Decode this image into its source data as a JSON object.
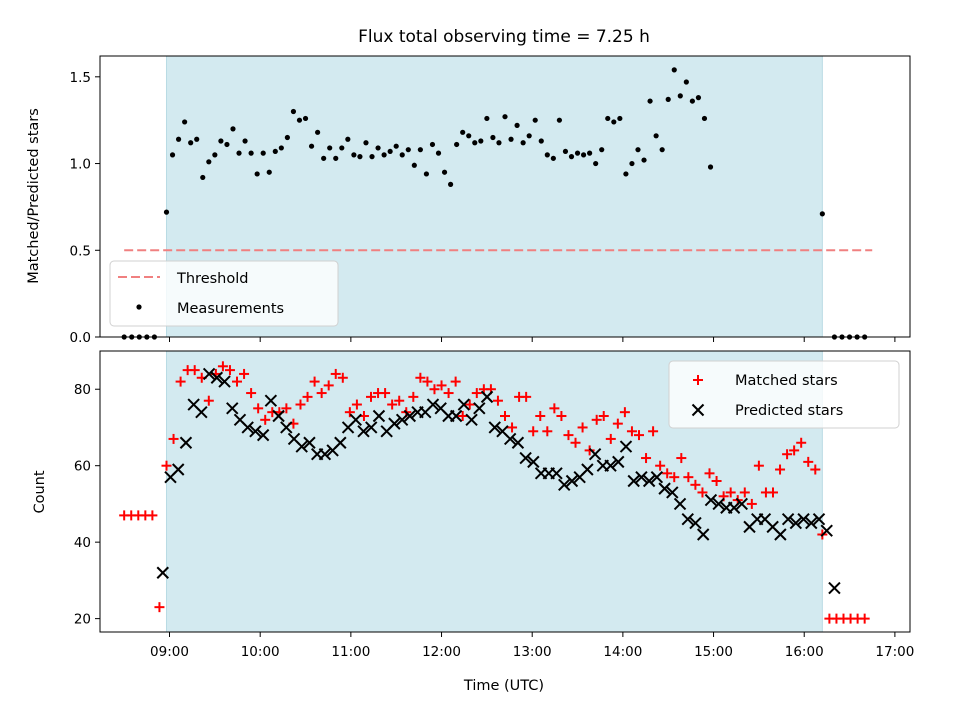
{
  "chart_data": [
    {
      "type": "scatter",
      "title": "Flux total observing time = 7.25 h",
      "xlabel": "",
      "ylabel": "Matched/Predicted stars",
      "ylim": [
        0,
        1.62
      ],
      "yticks": [
        "0.0",
        "0.5",
        "1.0",
        "1.5"
      ],
      "ytick_values": [
        0,
        0.5,
        1.0,
        1.5
      ],
      "xlim": [
        "08:14",
        "17:10"
      ],
      "shaded_interval": [
        "08:58",
        "16:12"
      ],
      "shade_color": "#d3eaf0",
      "legend": {
        "placement": "lower-left",
        "entries": [
          "Threshold",
          "Measurements"
        ]
      },
      "threshold": {
        "name": "Threshold",
        "value": 0.5,
        "x_range": [
          "08:30",
          "16:45"
        ],
        "color": "#f08080"
      },
      "series": [
        {
          "name": "Measurements",
          "color": "#000000",
          "marker": "dot",
          "points": [
            [
              "08:30",
              0
            ],
            [
              "08:35",
              0
            ],
            [
              "08:40",
              0
            ],
            [
              "08:45",
              0
            ],
            [
              "08:50",
              0
            ],
            [
              "08:58",
              0.72
            ],
            [
              "09:02",
              1.05
            ],
            [
              "09:06",
              1.14
            ],
            [
              "09:10",
              1.24
            ],
            [
              "09:14",
              1.12
            ],
            [
              "09:18",
              1.14
            ],
            [
              "09:22",
              0.92
            ],
            [
              "09:26",
              1.01
            ],
            [
              "09:30",
              1.05
            ],
            [
              "09:34",
              1.13
            ],
            [
              "09:38",
              1.11
            ],
            [
              "09:42",
              1.2
            ],
            [
              "09:46",
              1.06
            ],
            [
              "09:50",
              1.13
            ],
            [
              "09:54",
              1.06
            ],
            [
              "09:58",
              0.94
            ],
            [
              "10:02",
              1.06
            ],
            [
              "10:06",
              0.95
            ],
            [
              "10:10",
              1.07
            ],
            [
              "10:14",
              1.09
            ],
            [
              "10:18",
              1.15
            ],
            [
              "10:22",
              1.3
            ],
            [
              "10:26",
              1.25
            ],
            [
              "10:30",
              1.26
            ],
            [
              "10:34",
              1.1
            ],
            [
              "10:38",
              1.18
            ],
            [
              "10:42",
              1.03
            ],
            [
              "10:46",
              1.09
            ],
            [
              "10:50",
              1.03
            ],
            [
              "10:54",
              1.09
            ],
            [
              "10:58",
              1.14
            ],
            [
              "11:02",
              1.05
            ],
            [
              "11:06",
              1.04
            ],
            [
              "11:10",
              1.12
            ],
            [
              "11:14",
              1.04
            ],
            [
              "11:18",
              1.09
            ],
            [
              "11:22",
              1.05
            ],
            [
              "11:26",
              1.07
            ],
            [
              "11:30",
              1.1
            ],
            [
              "11:34",
              1.05
            ],
            [
              "11:38",
              1.08
            ],
            [
              "11:42",
              0.99
            ],
            [
              "11:46",
              1.08
            ],
            [
              "11:50",
              0.94
            ],
            [
              "11:54",
              1.11
            ],
            [
              "11:58",
              1.06
            ],
            [
              "12:02",
              0.95
            ],
            [
              "12:06",
              0.88
            ],
            [
              "12:10",
              1.11
            ],
            [
              "12:14",
              1.18
            ],
            [
              "12:18",
              1.16
            ],
            [
              "12:22",
              1.12
            ],
            [
              "12:26",
              1.13
            ],
            [
              "12:30",
              1.26
            ],
            [
              "12:34",
              1.15
            ],
            [
              "12:38",
              1.12
            ],
            [
              "12:42",
              1.27
            ],
            [
              "12:46",
              1.14
            ],
            [
              "12:50",
              1.22
            ],
            [
              "12:54",
              1.12
            ],
            [
              "12:58",
              1.16
            ],
            [
              "13:02",
              1.25
            ],
            [
              "13:06",
              1.13
            ],
            [
              "13:10",
              1.05
            ],
            [
              "13:14",
              1.03
            ],
            [
              "13:18",
              1.25
            ],
            [
              "13:22",
              1.07
            ],
            [
              "13:26",
              1.04
            ],
            [
              "13:30",
              1.06
            ],
            [
              "13:34",
              1.05
            ],
            [
              "13:38",
              1.06
            ],
            [
              "13:42",
              1.0
            ],
            [
              "13:46",
              1.08
            ],
            [
              "13:50",
              1.26
            ],
            [
              "13:54",
              1.24
            ],
            [
              "13:58",
              1.26
            ],
            [
              "14:02",
              0.94
            ],
            [
              "14:06",
              1.0
            ],
            [
              "14:10",
              1.08
            ],
            [
              "14:14",
              1.02
            ],
            [
              "14:18",
              1.36
            ],
            [
              "14:22",
              1.16
            ],
            [
              "14:26",
              1.08
            ],
            [
              "14:30",
              1.37
            ],
            [
              "14:34",
              1.54
            ],
            [
              "14:38",
              1.39
            ],
            [
              "14:42",
              1.47
            ],
            [
              "14:46",
              1.36
            ],
            [
              "14:50",
              1.38
            ],
            [
              "14:54",
              1.26
            ],
            [
              "14:58",
              0.98
            ],
            [
              "16:12",
              0.71
            ],
            [
              "16:20",
              0
            ],
            [
              "16:25",
              0
            ],
            [
              "16:30",
              0
            ],
            [
              "16:35",
              0
            ],
            [
              "16:40",
              0
            ]
          ]
        }
      ]
    },
    {
      "type": "scatter",
      "title": "",
      "xlabel": "Time (UTC)",
      "ylabel": "Count",
      "ylim": [
        16.5,
        90
      ],
      "yticks": [
        "20",
        "40",
        "60",
        "80"
      ],
      "ytick_values": [
        20,
        40,
        60,
        80
      ],
      "xlim": [
        "08:14",
        "17:10"
      ],
      "xticks": [
        "09:00",
        "10:00",
        "11:00",
        "12:00",
        "13:00",
        "14:00",
        "15:00",
        "16:00",
        "17:00"
      ],
      "shaded_interval": [
        "08:58",
        "16:12"
      ],
      "shade_color": "#d3eaf0",
      "legend": {
        "placement": "upper-right",
        "entries": [
          "Matched stars",
          "Predicted stars"
        ]
      },
      "series": [
        {
          "name": "Matched stars",
          "color": "#ff0000",
          "marker": "plus",
          "values": [
            47,
            47,
            47,
            47,
            47,
            23,
            60,
            67,
            82,
            85,
            85,
            83,
            77,
            84,
            86,
            85,
            82,
            84,
            79,
            75,
            72,
            74,
            74,
            75,
            71,
            76,
            78,
            82,
            79,
            81,
            84,
            83,
            74,
            76,
            73,
            78,
            79,
            79,
            76,
            77,
            74,
            78,
            83,
            82,
            80,
            81,
            79,
            82,
            73,
            76,
            79,
            80,
            80,
            77,
            73,
            70,
            78,
            78,
            69,
            73,
            69,
            75,
            73,
            68,
            66,
            70,
            64,
            72,
            73,
            67,
            71,
            74,
            69,
            68,
            62,
            69,
            60,
            58,
            57,
            62,
            57,
            55,
            53,
            58,
            56,
            52,
            53,
            51,
            53,
            50,
            60,
            53,
            53,
            59,
            63,
            64,
            66,
            61,
            59,
            42,
            20,
            20,
            20,
            20,
            20,
            20
          ],
          "x_from": "08:30",
          "x_to": "16:40"
        },
        {
          "name": "Predicted stars",
          "color": "#000000",
          "marker": "x",
          "values": [
            null,
            null,
            null,
            null,
            null,
            32,
            57,
            59,
            66,
            76,
            74,
            84,
            83,
            82,
            75,
            72,
            70,
            69,
            68,
            77,
            73,
            70,
            67,
            65,
            66,
            63,
            63,
            64,
            66,
            70,
            72,
            69,
            70,
            73,
            69,
            71,
            72,
            73,
            74,
            74,
            76,
            75,
            73,
            73,
            76,
            72,
            75,
            78,
            70,
            69,
            67,
            66,
            62,
            61,
            58,
            58,
            58,
            55,
            56,
            57,
            59,
            63,
            60,
            60,
            61,
            65,
            56,
            57,
            56,
            57,
            54,
            53,
            50,
            46,
            45,
            42,
            51,
            50,
            49,
            49,
            50,
            44,
            46,
            46,
            44,
            42,
            46,
            45,
            46,
            45,
            46,
            43,
            28
          ],
          "x_from": "08:30",
          "x_to": "16:20"
        }
      ]
    }
  ]
}
